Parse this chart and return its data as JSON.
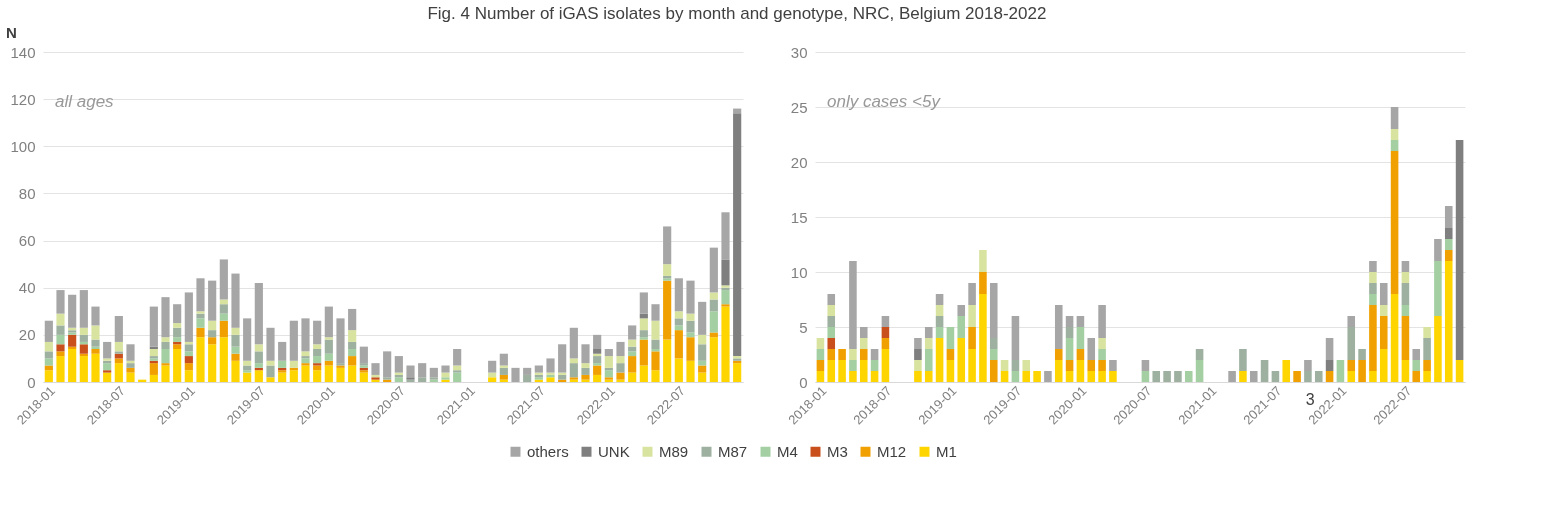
{
  "chart_data": [
    {
      "type": "bar",
      "title": "Fig. 4 Number of iGAS isolates by month and genotype, NRC, Belgium 2018-2022",
      "ylabel": "N",
      "stacked": true,
      "annotations": [
        "all ages"
      ],
      "categories": [
        "2018-01",
        null,
        null,
        null,
        null,
        null,
        "2018-07",
        null,
        null,
        null,
        null,
        null,
        "2019-01",
        null,
        null,
        null,
        null,
        null,
        "2019-07",
        null,
        null,
        null,
        null,
        null,
        "2020-01",
        null,
        null,
        null,
        null,
        null,
        "2020-07",
        null,
        null,
        null,
        null,
        null,
        "2021-01",
        null,
        null,
        null,
        null,
        null,
        "2021-07",
        null,
        null,
        null,
        null,
        null,
        "2022-01",
        null,
        null,
        null,
        null,
        null,
        "2022-07",
        null,
        null,
        null,
        null,
        null
      ],
      "series": [
        {
          "name": "M1",
          "color": "#ffd500",
          "values": [
            5,
            11,
            14,
            11,
            12,
            4,
            8,
            4,
            1,
            3,
            7,
            14,
            5,
            19,
            16,
            19,
            9,
            4,
            5,
            2,
            4,
            5,
            7,
            5,
            7,
            6,
            7,
            4,
            1,
            0,
            0,
            0,
            0,
            0,
            1,
            0,
            null,
            null,
            2,
            1,
            0,
            0,
            1,
            2,
            0,
            1,
            1,
            3,
            1,
            1,
            4,
            7,
            5,
            18,
            10,
            9,
            4,
            19,
            32,
            8
          ]
        },
        {
          "name": "M12",
          "color": "#f0a000",
          "values": [
            2,
            2,
            1,
            1,
            2,
            0,
            2,
            2,
            0,
            5,
            1,
            2,
            3,
            4,
            3,
            7,
            3,
            0,
            0,
            0,
            1,
            1,
            1,
            2,
            2,
            1,
            4,
            1,
            0,
            1,
            0,
            0,
            0,
            0,
            0,
            0,
            null,
            null,
            0,
            2,
            0,
            0,
            0,
            0,
            1,
            1,
            2,
            4,
            1,
            3,
            7,
            11,
            8,
            25,
            12,
            10,
            3,
            2,
            1,
            1
          ]
        },
        {
          "name": "M3",
          "color": "#c9501c",
          "values": [
            0,
            3,
            5,
            4,
            0,
            1,
            2,
            0,
            0,
            1,
            0,
            1,
            3,
            0,
            0,
            0,
            0,
            0,
            1,
            0,
            1,
            0,
            0,
            1,
            0,
            0,
            0,
            1,
            1,
            0,
            0,
            0,
            0,
            0,
            0,
            0,
            null,
            null,
            0,
            0,
            0,
            0,
            0,
            0,
            0,
            0,
            0,
            0,
            0,
            0,
            0,
            0,
            0,
            0,
            0,
            0,
            0,
            0,
            0,
            0
          ]
        },
        {
          "name": "M4",
          "color": "#a3cfa3",
          "values": [
            3,
            4,
            1,
            1,
            1,
            3,
            0,
            0,
            0,
            1,
            6,
            2,
            2,
            4,
            0,
            3,
            3,
            1,
            2,
            0,
            3,
            0,
            2,
            3,
            3,
            0,
            3,
            1,
            0,
            0,
            2,
            0,
            0,
            1,
            1,
            4,
            null,
            null,
            0,
            0,
            0,
            0,
            1,
            1,
            0,
            0,
            0,
            1,
            3,
            0,
            2,
            1,
            1,
            1,
            2,
            2,
            2,
            9,
            6,
            0
          ]
        },
        {
          "name": "M87",
          "color": "#9eb0a0",
          "values": [
            3,
            4,
            1,
            3,
            3,
            1,
            1,
            2,
            0,
            1,
            3,
            4,
            3,
            2,
            3,
            4,
            5,
            2,
            5,
            5,
            0,
            0,
            1,
            3,
            6,
            1,
            3,
            1,
            0,
            1,
            1,
            1,
            2,
            1,
            0,
            1,
            null,
            null,
            0,
            3,
            0,
            3,
            1,
            0,
            2,
            6,
            3,
            3,
            1,
            4,
            2,
            3,
            4,
            1,
            3,
            5,
            7,
            5,
            1,
            1
          ]
        },
        {
          "name": "M89",
          "color": "#d9e3a0",
          "values": [
            4,
            5,
            1,
            3,
            6,
            1,
            4,
            1,
            0,
            3,
            2,
            2,
            1,
            1,
            4,
            2,
            3,
            2,
            3,
            2,
            0,
            3,
            2,
            2,
            1,
            0,
            5,
            0,
            1,
            0,
            1,
            0,
            0,
            0,
            2,
            2,
            null,
            null,
            2,
            1,
            0,
            0,
            1,
            1,
            1,
            2,
            2,
            1,
            5,
            3,
            3,
            5,
            8,
            5,
            3,
            3,
            4,
            3,
            1,
            1
          ]
        },
        {
          "name": "UNK",
          "color": "#7f7f7f",
          "values": [
            0,
            0,
            0,
            0,
            0,
            0,
            0,
            0,
            0,
            1,
            0,
            0,
            0,
            0,
            0,
            0,
            0,
            0,
            0,
            0,
            0,
            0,
            0,
            0,
            0,
            0,
            0,
            0,
            0,
            0,
            0,
            1,
            0,
            0,
            0,
            0,
            null,
            null,
            0,
            0,
            0,
            0,
            0,
            0,
            0,
            0,
            0,
            2,
            0,
            0,
            0,
            2,
            0,
            0,
            0,
            0,
            0,
            0,
            11,
            103
          ]
        },
        {
          "name": "others",
          "color": "#a6a6a6",
          "values": [
            9,
            10,
            14,
            16,
            8,
            7,
            11,
            7,
            0,
            17,
            17,
            8,
            21,
            14,
            17,
            17,
            23,
            18,
            26,
            14,
            8,
            17,
            14,
            10,
            13,
            19,
            9,
            7,
            5,
            11,
            7,
            5,
            6,
            4,
            3,
            7,
            null,
            null,
            5,
            5,
            6,
            3,
            3,
            6,
            12,
            13,
            8,
            6,
            3,
            6,
            6,
            9,
            7,
            16,
            14,
            14,
            14,
            19,
            20,
            2
          ]
        }
      ],
      "ylim": [
        0,
        140
      ],
      "yticks": [
        0,
        20,
        40,
        60,
        80,
        100,
        120,
        140
      ],
      "grid": "y",
      "legend": "bottom"
    },
    {
      "type": "bar",
      "stacked": true,
      "annotations": [
        "only cases <5y",
        "3"
      ],
      "categories": [
        "2018-01",
        null,
        null,
        null,
        null,
        null,
        "2018-07",
        null,
        null,
        null,
        null,
        null,
        "2019-01",
        null,
        null,
        null,
        null,
        null,
        "2019-07",
        null,
        null,
        null,
        null,
        null,
        "2020-01",
        null,
        null,
        null,
        null,
        null,
        "2020-07",
        null,
        null,
        null,
        null,
        null,
        "2021-01",
        null,
        null,
        null,
        null,
        null,
        "2021-07",
        null,
        null,
        null,
        null,
        null,
        "2022-01",
        null,
        null,
        null,
        null,
        null,
        "2022-07",
        null,
        null,
        null,
        null,
        null
      ],
      "series": [
        {
          "name": "M1",
          "color": "#ffd500",
          "values": [
            1,
            2,
            2,
            1,
            2,
            1,
            3,
            null,
            null,
            1,
            1,
            4,
            2,
            4,
            3,
            8,
            0,
            1,
            0,
            1,
            1,
            0,
            2,
            1,
            2,
            1,
            1,
            1,
            null,
            null,
            0,
            0,
            0,
            0,
            0,
            0,
            null,
            null,
            0,
            1,
            0,
            0,
            0,
            2,
            0,
            0,
            0,
            0,
            0,
            1,
            0,
            1,
            3,
            8,
            2,
            0,
            1,
            6,
            11,
            2
          ]
        },
        {
          "name": "M12",
          "color": "#f0a000",
          "values": [
            1,
            1,
            1,
            0,
            1,
            0,
            1,
            null,
            null,
            0,
            0,
            0,
            1,
            0,
            2,
            2,
            2,
            0,
            0,
            0,
            0,
            0,
            1,
            1,
            1,
            1,
            1,
            0,
            null,
            null,
            0,
            0,
            0,
            0,
            0,
            0,
            null,
            null,
            0,
            0,
            0,
            0,
            0,
            0,
            1,
            0,
            0,
            1,
            0,
            1,
            2,
            6,
            3,
            13,
            4,
            1,
            1,
            0,
            1,
            0
          ]
        },
        {
          "name": "M3",
          "color": "#c9501c",
          "values": [
            0,
            1,
            0,
            0,
            0,
            0,
            1,
            null,
            null,
            0,
            0,
            0,
            0,
            0,
            0,
            0,
            0,
            0,
            0,
            0,
            0,
            0,
            0,
            0,
            0,
            0,
            0,
            0,
            null,
            null,
            0,
            0,
            0,
            0,
            0,
            0,
            null,
            null,
            0,
            0,
            0,
            0,
            0,
            0,
            0,
            0,
            0,
            0,
            0,
            0,
            0,
            0,
            0,
            0,
            0,
            0,
            0,
            0,
            0,
            0
          ]
        },
        {
          "name": "M4",
          "color": "#a3cfa3",
          "values": [
            1,
            1,
            0,
            1,
            0,
            1,
            0,
            null,
            null,
            0,
            2,
            1,
            2,
            2,
            0,
            0,
            1,
            0,
            1,
            0,
            0,
            0,
            0,
            2,
            2,
            0,
            1,
            0,
            null,
            null,
            1,
            0,
            0,
            0,
            1,
            2,
            null,
            null,
            0,
            0,
            0,
            0,
            0,
            0,
            0,
            0,
            0,
            0,
            2,
            0,
            0,
            1,
            0,
            1,
            1,
            1,
            0,
            5,
            1,
            0
          ]
        },
        {
          "name": "M87",
          "color": "#9eb0a0",
          "values": [
            0,
            1,
            0,
            0,
            0,
            0,
            0,
            null,
            null,
            0,
            0,
            1,
            0,
            0,
            0,
            0,
            1,
            0,
            1,
            0,
            0,
            0,
            0,
            1,
            0,
            0,
            0,
            0,
            null,
            null,
            0,
            1,
            1,
            1,
            0,
            1,
            null,
            null,
            0,
            2,
            0,
            2,
            1,
            0,
            0,
            1,
            1,
            0,
            0,
            3,
            1,
            1,
            0,
            0,
            2,
            0,
            2,
            0,
            0,
            0
          ]
        },
        {
          "name": "M89",
          "color": "#d9e3a0",
          "values": [
            1,
            1,
            0,
            1,
            1,
            0,
            0,
            null,
            null,
            1,
            1,
            1,
            0,
            0,
            2,
            2,
            0,
            1,
            0,
            1,
            0,
            0,
            0,
            0,
            0,
            0,
            1,
            0,
            null,
            null,
            0,
            0,
            0,
            0,
            0,
            0,
            null,
            null,
            0,
            0,
            0,
            0,
            0,
            0,
            0,
            0,
            0,
            0,
            0,
            0,
            0,
            1,
            1,
            1,
            1,
            0,
            1,
            0,
            0,
            0
          ]
        },
        {
          "name": "UNK",
          "color": "#7f7f7f",
          "values": [
            0,
            0,
            0,
            0,
            0,
            0,
            0,
            null,
            null,
            1,
            0,
            0,
            0,
            0,
            0,
            0,
            0,
            0,
            0,
            0,
            0,
            0,
            0,
            0,
            0,
            0,
            0,
            0,
            null,
            null,
            0,
            0,
            0,
            0,
            0,
            0,
            null,
            null,
            0,
            0,
            0,
            0,
            0,
            0,
            0,
            0,
            0,
            1,
            0,
            0,
            0,
            0,
            0,
            0,
            0,
            0,
            0,
            0,
            1,
            20
          ]
        },
        {
          "name": "others",
          "color": "#a6a6a6",
          "values": [
            0,
            1,
            0,
            8,
            1,
            1,
            1,
            null,
            null,
            1,
            1,
            1,
            0,
            1,
            2,
            0,
            5,
            0,
            4,
            0,
            0,
            1,
            4,
            1,
            1,
            2,
            3,
            1,
            null,
            null,
            1,
            0,
            0,
            0,
            0,
            0,
            null,
            null,
            1,
            0,
            1,
            0,
            0,
            0,
            0,
            1,
            0,
            2,
            0,
            1,
            0,
            1,
            2,
            2,
            1,
            1,
            0,
            2,
            2,
            0
          ]
        }
      ],
      "ylim": [
        0,
        30
      ],
      "yticks": [
        0,
        5,
        10,
        15,
        20,
        25,
        30
      ],
      "grid": "y",
      "legend": "bottom"
    }
  ]
}
